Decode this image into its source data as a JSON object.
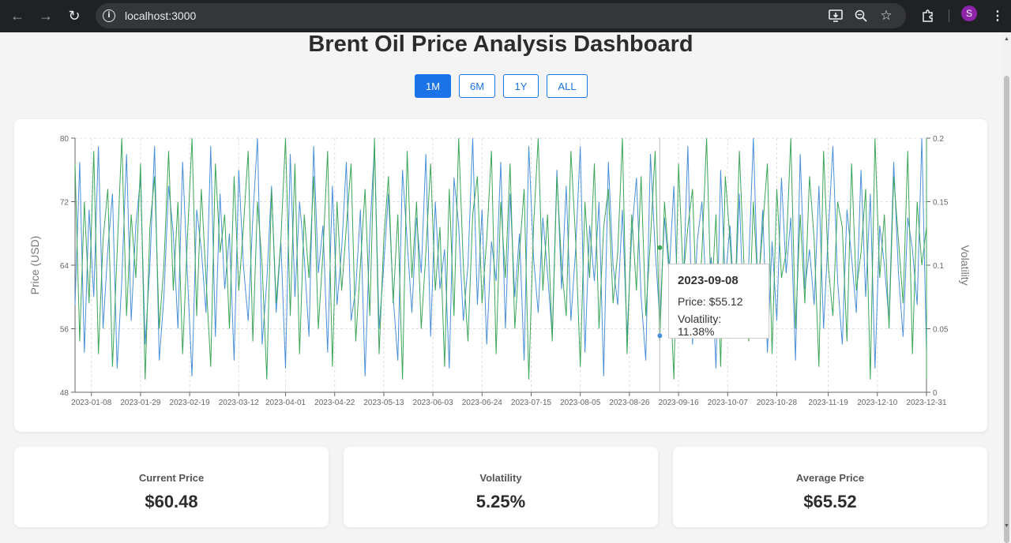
{
  "browser": {
    "url": "localhost:3000",
    "profile_initial": "S",
    "icons": [
      "back-icon",
      "forward-icon",
      "reload-icon",
      "info-icon",
      "install-icon",
      "zoom-icon",
      "star-icon",
      "extensions-icon",
      "menu-icon"
    ]
  },
  "page": {
    "title": "Brent Oil Price Analysis Dashboard",
    "range_buttons": [
      "1M",
      "6M",
      "1Y",
      "ALL"
    ],
    "selected_range": "1M"
  },
  "colors": {
    "accent": "#1a73e8",
    "price_line": "#4a90d9",
    "volatility_line": "#3da55a"
  },
  "chart_data": {
    "type": "line",
    "title": "",
    "ylabel": "Price (USD)",
    "y2label": "Volatility",
    "ylim": [
      48,
      80
    ],
    "y2lim": [
      0,
      0.2
    ],
    "yticks": [
      "48",
      "56",
      "64",
      "72",
      "80"
    ],
    "y2ticks": [
      "0",
      "0.05",
      "0.1",
      "0.15",
      "0.2"
    ],
    "x_range": [
      "2023-01-01",
      "2023-12-31"
    ],
    "xticks": [
      "2023-01-08",
      "2023-01-29",
      "2023-02-19",
      "2023-03-12",
      "2023-04-01",
      "2023-04-22",
      "2023-05-13",
      "2023-06-03",
      "2023-06-24",
      "2023-07-15",
      "2023-08-05",
      "2023-08-26",
      "2023-09-16",
      "2023-10-07",
      "2023-10-28",
      "2023-11-19",
      "2023-12-10",
      "2023-12-31"
    ],
    "grid": true,
    "sample_days": 2,
    "series": [
      {
        "name": "Price",
        "axis": "left",
        "values": [
          59,
          77,
          53,
          71,
          60,
          79,
          56,
          66,
          73,
          51,
          62,
          78,
          57,
          69,
          75,
          54,
          64,
          79,
          52,
          60,
          74,
          68,
          56,
          77,
          63,
          50,
          71,
          66,
          58,
          79,
          55,
          73,
          61,
          68,
          52,
          76,
          64,
          57,
          70,
          80,
          54,
          62,
          74,
          58,
          67,
          51,
          78,
          60,
          72,
          65,
          55,
          79,
          63,
          69,
          53,
          74,
          59,
          66,
          77,
          57,
          61,
          71,
          50,
          68,
          79,
          56,
          64,
          73,
          60,
          52,
          76,
          67,
          58,
          70,
          63,
          78,
          55,
          72,
          61,
          66,
          51,
          75,
          69,
          57,
          64,
          80,
          59,
          71,
          54,
          67,
          62,
          77,
          56,
          73,
          60,
          68,
          52,
          79,
          65,
          58,
          70,
          63,
          55,
          76,
          61,
          74,
          57,
          66,
          79,
          53,
          69,
          62,
          72,
          50,
          77,
          64,
          59,
          71,
          55,
          68,
          75,
          60,
          52,
          78,
          66,
          57,
          70,
          63,
          74,
          56,
          61,
          79,
          54,
          67,
          72,
          59,
          65,
          51,
          76,
          62,
          69,
          58,
          73,
          55,
          64,
          80,
          60,
          71,
          53,
          67,
          57,
          75,
          63,
          70,
          52,
          78,
          61,
          66,
          59,
          74,
          56,
          68,
          79,
          62,
          54,
          71,
          65,
          58,
          76,
          60,
          73,
          51,
          69,
          64,
          57,
          77,
          63,
          55,
          70,
          66,
          59,
          80,
          53,
          68,
          62,
          74,
          56,
          72,
          60,
          65,
          52,
          78,
          67,
          58,
          71,
          61,
          75,
          55,
          69,
          63,
          57,
          79,
          66,
          54,
          73,
          60,
          68,
          51,
          76,
          64,
          59,
          72,
          56,
          70,
          62,
          78,
          58,
          65,
          53,
          74,
          61,
          67,
          55,
          71,
          80,
          57,
          63,
          69,
          52,
          60
        ],
        "highlight": {
          "date": "2023-09-08",
          "value": 55.12
        }
      },
      {
        "name": "Volatility",
        "axis": "right",
        "values": [
          0.18,
          0.04,
          0.15,
          0.07,
          0.19,
          0.03,
          0.12,
          0.16,
          0.02,
          0.11,
          0.2,
          0.06,
          0.14,
          0.09,
          0.18,
          0.01,
          0.13,
          0.17,
          0.05,
          0.1,
          0.19,
          0.08,
          0.15,
          0.03,
          0.12,
          0.2,
          0.06,
          0.16,
          0.09,
          0.02,
          0.18,
          0.11,
          0.14,
          0.05,
          0.17,
          0.08,
          0.13,
          0.19,
          0.04,
          0.15,
          0.1,
          0.01,
          0.16,
          0.07,
          0.12,
          0.2,
          0.06,
          0.18,
          0.03,
          0.14,
          0.09,
          0.17,
          0.05,
          0.11,
          0.19,
          0.02,
          0.15,
          0.08,
          0.13,
          0.18,
          0.04,
          0.1,
          0.16,
          0.06,
          0.2,
          0.03,
          0.12,
          0.17,
          0.07,
          0.14,
          0.01,
          0.19,
          0.09,
          0.15,
          0.05,
          0.11,
          0.18,
          0.08,
          0.13,
          0.02,
          0.16,
          0.06,
          0.2,
          0.1,
          0.04,
          0.14,
          0.17,
          0.07,
          0.12,
          0.19,
          0.03,
          0.15,
          0.09,
          0.18,
          0.05,
          0.11,
          0.16,
          0.01,
          0.13,
          0.2,
          0.08,
          0.14,
          0.04,
          0.17,
          0.1,
          0.06,
          0.19,
          0.12,
          0.02,
          0.15,
          0.09,
          0.18,
          0.05,
          0.13,
          0.16,
          0.07,
          0.11,
          0.2,
          0.03,
          0.14,
          0.08,
          0.17,
          0.06,
          0.12,
          0.19,
          0.04,
          0.15,
          0.1,
          0.01,
          0.18,
          0.09,
          0.13,
          0.16,
          0.05,
          0.11,
          0.2,
          0.07,
          0.14,
          0.02,
          0.17,
          0.12,
          0.06,
          0.19,
          0.1,
          0.04,
          0.15,
          0.08,
          0.13,
          0.18,
          0.03,
          0.16,
          0.09,
          0.11,
          0.2,
          0.05,
          0.14,
          0.07,
          0.17,
          0.12,
          0.02,
          0.19,
          0.1,
          0.06,
          0.15,
          0.13,
          0.04,
          0.18,
          0.08,
          0.11,
          0.16,
          0.01,
          0.2,
          0.09,
          0.14,
          0.05,
          0.17,
          0.12,
          0.07,
          0.19,
          0.03,
          0.15,
          0.1,
          0.13,
          0.18,
          0.06,
          0.16,
          0.04,
          0.2,
          0.09,
          0.11,
          0.14,
          0.02,
          0.17,
          0.08,
          0.19,
          0.12,
          0.05,
          0.15,
          0.1,
          0.18,
          0.03,
          0.13,
          0.16,
          0.07,
          0.2,
          0.11,
          0.04,
          0.14,
          0.09,
          0.17,
          0.06,
          0.12,
          0.19,
          0.01,
          0.15,
          0.1,
          0.08,
          0.18,
          0.05,
          0.13,
          0.16,
          0.03,
          0.2,
          0.11,
          0.07,
          0.14,
          0.09,
          0.17,
          0.04,
          0.19
        ],
        "highlight": {
          "date": "2023-09-08",
          "value": 0.1138
        }
      }
    ],
    "tooltip": {
      "date": "2023-09-08",
      "price_text": "Price: $55.12",
      "volatility_text": "Volatility: 11.38%"
    }
  },
  "stats": [
    {
      "label": "Current Price",
      "value": "$60.48"
    },
    {
      "label": "Volatility",
      "value": "5.25%"
    },
    {
      "label": "Average Price",
      "value": "$65.52"
    }
  ]
}
